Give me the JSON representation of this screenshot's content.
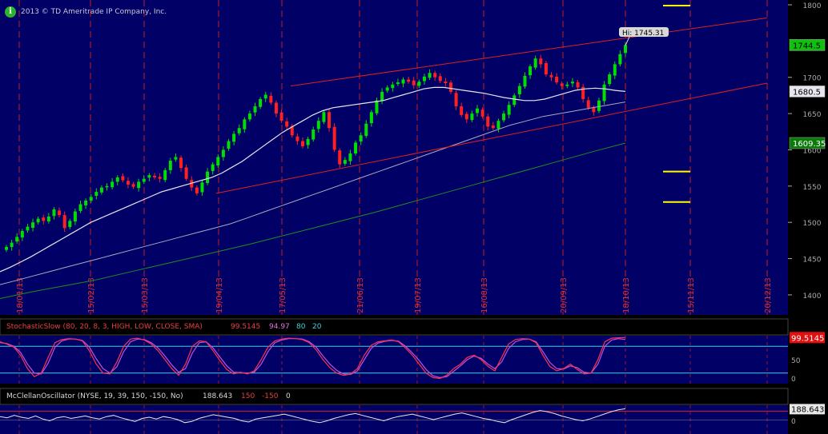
{
  "copyright": "2013 © TD Ameritrade IP Company, Inc.",
  "price_panel": {
    "y_ticks": [
      "1800",
      "1700",
      "1650",
      "1600",
      "1550",
      "1500",
      "1450",
      "1400"
    ],
    "date_labels": [
      "18/01/13",
      "15/02/13",
      "15/03/13",
      "19/04/13",
      "17/05/13",
      "21/06/13",
      "19/07/13",
      "16/08/13",
      "20/09/13",
      "18/10/13",
      "15/11/13",
      "20/12/13"
    ],
    "hi_label": "Hi: 1745.31",
    "price_tag": "1744.5",
    "sma50_tag": "1680.5",
    "sma200_tag": "1609.35"
  },
  "stochastic_panel": {
    "name": "StochasticSlow (80, 20, 8, 3, HIGH, LOW, CLOSE, SMA)",
    "value_k": "99.5145",
    "value_d": "94.97",
    "level_high": "80",
    "level_low": "20",
    "tag": "99.5145",
    "axis": [
      "50",
      "0"
    ]
  },
  "mcclellan_panel": {
    "name": "McClellanOscillator (NYSE, 19, 39, 150, -150, No)",
    "value": "188.643",
    "upper": "150",
    "lower": "-150",
    "zero": "0",
    "tag": "188.643",
    "axis": [
      "0"
    ]
  },
  "colors": {
    "panel_bg": "#000066",
    "up": "#00e000",
    "down": "#ff2020",
    "channel": "#e02020",
    "sma50": "#e6e6ee",
    "sma_mid": "#a9a9bf",
    "sma200": "#1f8f1f",
    "level": "#ffff00"
  },
  "chart_data": {
    "type": "candlestick",
    "ylim": [
      1390,
      1800
    ],
    "points": [
      {
        "x": "18/01/13",
        "close": 1470
      },
      {
        "x": "15/02/13",
        "close": 1520
      },
      {
        "x": "15/03/13",
        "close": 1556
      },
      {
        "x": "19/04/13",
        "close": 1555
      },
      {
        "x": "17/05/13",
        "close": 1667
      },
      {
        "x": "21/06/13",
        "close": 1592
      },
      {
        "x": "19/07/13",
        "close": 1692
      },
      {
        "x": "16/08/13",
        "close": 1656
      },
      {
        "x": "20/09/13",
        "close": 1708
      },
      {
        "x": "18/10/13",
        "close": 1744.5
      }
    ],
    "close_path": [
      1466,
      1472,
      1480,
      1488,
      1494,
      1500,
      1505,
      1502,
      1508,
      1518,
      1510,
      1492,
      1502,
      1515,
      1525,
      1530,
      1535,
      1542,
      1548,
      1550,
      1556,
      1562,
      1558,
      1552,
      1549,
      1556,
      1560,
      1565,
      1562,
      1560,
      1572,
      1585,
      1590,
      1575,
      1560,
      1548,
      1540,
      1555,
      1570,
      1580,
      1590,
      1600,
      1612,
      1622,
      1630,
      1642,
      1650,
      1660,
      1670,
      1676,
      1665,
      1650,
      1640,
      1632,
      1620,
      1612,
      1605,
      1615,
      1628,
      1640,
      1652,
      1630,
      1600,
      1580,
      1586,
      1595,
      1610,
      1620,
      1636,
      1652,
      1668,
      1680,
      1686,
      1690,
      1693,
      1697,
      1694,
      1689,
      1694,
      1701,
      1706,
      1700,
      1695,
      1692,
      1680,
      1660,
      1648,
      1642,
      1650,
      1657,
      1646,
      1632,
      1630,
      1640,
      1650,
      1662,
      1675,
      1688,
      1702,
      1715,
      1726,
      1718,
      1704,
      1700,
      1693,
      1688,
      1690,
      1694,
      1686,
      1670,
      1658,
      1652,
      1668,
      1690,
      1704,
      1718,
      1732,
      1744.5
    ],
    "sma50": [
      1432,
      1438,
      1445,
      1452,
      1460,
      1468,
      1476,
      1484,
      1492,
      1500,
      1506,
      1512,
      1518,
      1524,
      1530,
      1536,
      1542,
      1546,
      1550,
      1554,
      1558,
      1562,
      1568,
      1576,
      1584,
      1594,
      1604,
      1614,
      1624,
      1632,
      1640,
      1648,
      1654,
      1658,
      1660,
      1662,
      1664,
      1666,
      1668,
      1672,
      1676,
      1680,
      1684,
      1686,
      1686,
      1684,
      1682,
      1680,
      1678,
      1675,
      1672,
      1670,
      1668,
      1668,
      1670,
      1674,
      1678,
      1682,
      1684,
      1685,
      1684,
      1682,
      1680.5
    ],
    "sma_mid": [
      1414,
      1420,
      1426,
      1432,
      1438,
      1444,
      1450,
      1456,
      1462,
      1468,
      1474,
      1480,
      1486,
      1492,
      1498,
      1506,
      1514,
      1522,
      1530,
      1538,
      1546,
      1554,
      1562,
      1570,
      1578,
      1586,
      1594,
      1602,
      1610,
      1618,
      1626,
      1634,
      1640,
      1646,
      1650,
      1654,
      1658,
      1662,
      1666
    ],
    "sma200": [
      1395,
      1404,
      1412,
      1420,
      1430,
      1440,
      1450,
      1460,
      1470,
      1481,
      1492,
      1503,
      1514,
      1526,
      1538,
      1550,
      1562,
      1574,
      1586,
      1598,
      1609.35
    ],
    "channel_upper": [
      [
        1,
        1688
      ],
      [
        2,
        1782
      ]
    ],
    "channel_lower": [
      [
        1,
        1540
      ],
      [
        2,
        1692
      ]
    ],
    "levels": [
      1800,
      1570,
      1528
    ],
    "stochastic": {
      "ylim": [
        0,
        100
      ],
      "k": [
        90,
        85,
        78,
        60,
        30,
        12,
        20,
        55,
        88,
        95,
        97,
        96,
        92,
        70,
        40,
        20,
        18,
        45,
        80,
        96,
        98,
        94,
        85,
        70,
        50,
        30,
        15,
        40,
        80,
        92,
        90,
        70,
        48,
        28,
        18,
        22,
        18,
        25,
        50,
        78,
        92,
        96,
        98,
        97,
        95,
        88,
        72,
        50,
        32,
        20,
        15,
        18,
        30,
        60,
        82,
        90,
        92,
        94,
        90,
        76,
        60,
        40,
        20,
        10,
        8,
        15,
        30,
        40,
        55,
        60,
        50,
        35,
        25,
        55,
        85,
        95,
        97,
        96,
        88,
        60,
        35,
        25,
        30,
        40,
        28,
        18,
        20,
        50,
        90,
        98,
        99,
        99.5
      ],
      "d": [
        88,
        86,
        80,
        66,
        40,
        20,
        18,
        42,
        78,
        92,
        96,
        96,
        93,
        78,
        52,
        30,
        20,
        34,
        68,
        90,
        96,
        95,
        88,
        76,
        58,
        38,
        22,
        30,
        65,
        88,
        90,
        76,
        56,
        36,
        22,
        21,
        20,
        22,
        40,
        68,
        88,
        94,
        97,
        97,
        96,
        90,
        78,
        58,
        40,
        26,
        18,
        17,
        25,
        50,
        75,
        87,
        91,
        93,
        91,
        80,
        65,
        48,
        28,
        14,
        10,
        12,
        24,
        36,
        50,
        58,
        53,
        40,
        30,
        45,
        75,
        90,
        95,
        96,
        90,
        68,
        44,
        30,
        29,
        36,
        32,
        22,
        20,
        40,
        80,
        94,
        97,
        94.97
      ]
    },
    "mcclellan": {
      "ylim": [
        -200,
        220
      ],
      "values": [
        60,
        40,
        80,
        50,
        30,
        70,
        20,
        -10,
        40,
        60,
        30,
        50,
        70,
        40,
        20,
        60,
        80,
        40,
        10,
        -20,
        30,
        50,
        20,
        60,
        40,
        10,
        -40,
        -20,
        30,
        60,
        90,
        70,
        50,
        30,
        -10,
        -30,
        20,
        40,
        60,
        80,
        100,
        70,
        40,
        10,
        -20,
        -40,
        -10,
        30,
        60,
        90,
        110,
        80,
        50,
        20,
        -10,
        30,
        60,
        80,
        100,
        70,
        40,
        10,
        40,
        70,
        100,
        120,
        90,
        60,
        30,
        10,
        -20,
        -40,
        10,
        50,
        90,
        130,
        160,
        140,
        110,
        70,
        40,
        10,
        -10,
        20,
        60,
        100,
        140,
        170,
        188.643
      ]
    }
  }
}
